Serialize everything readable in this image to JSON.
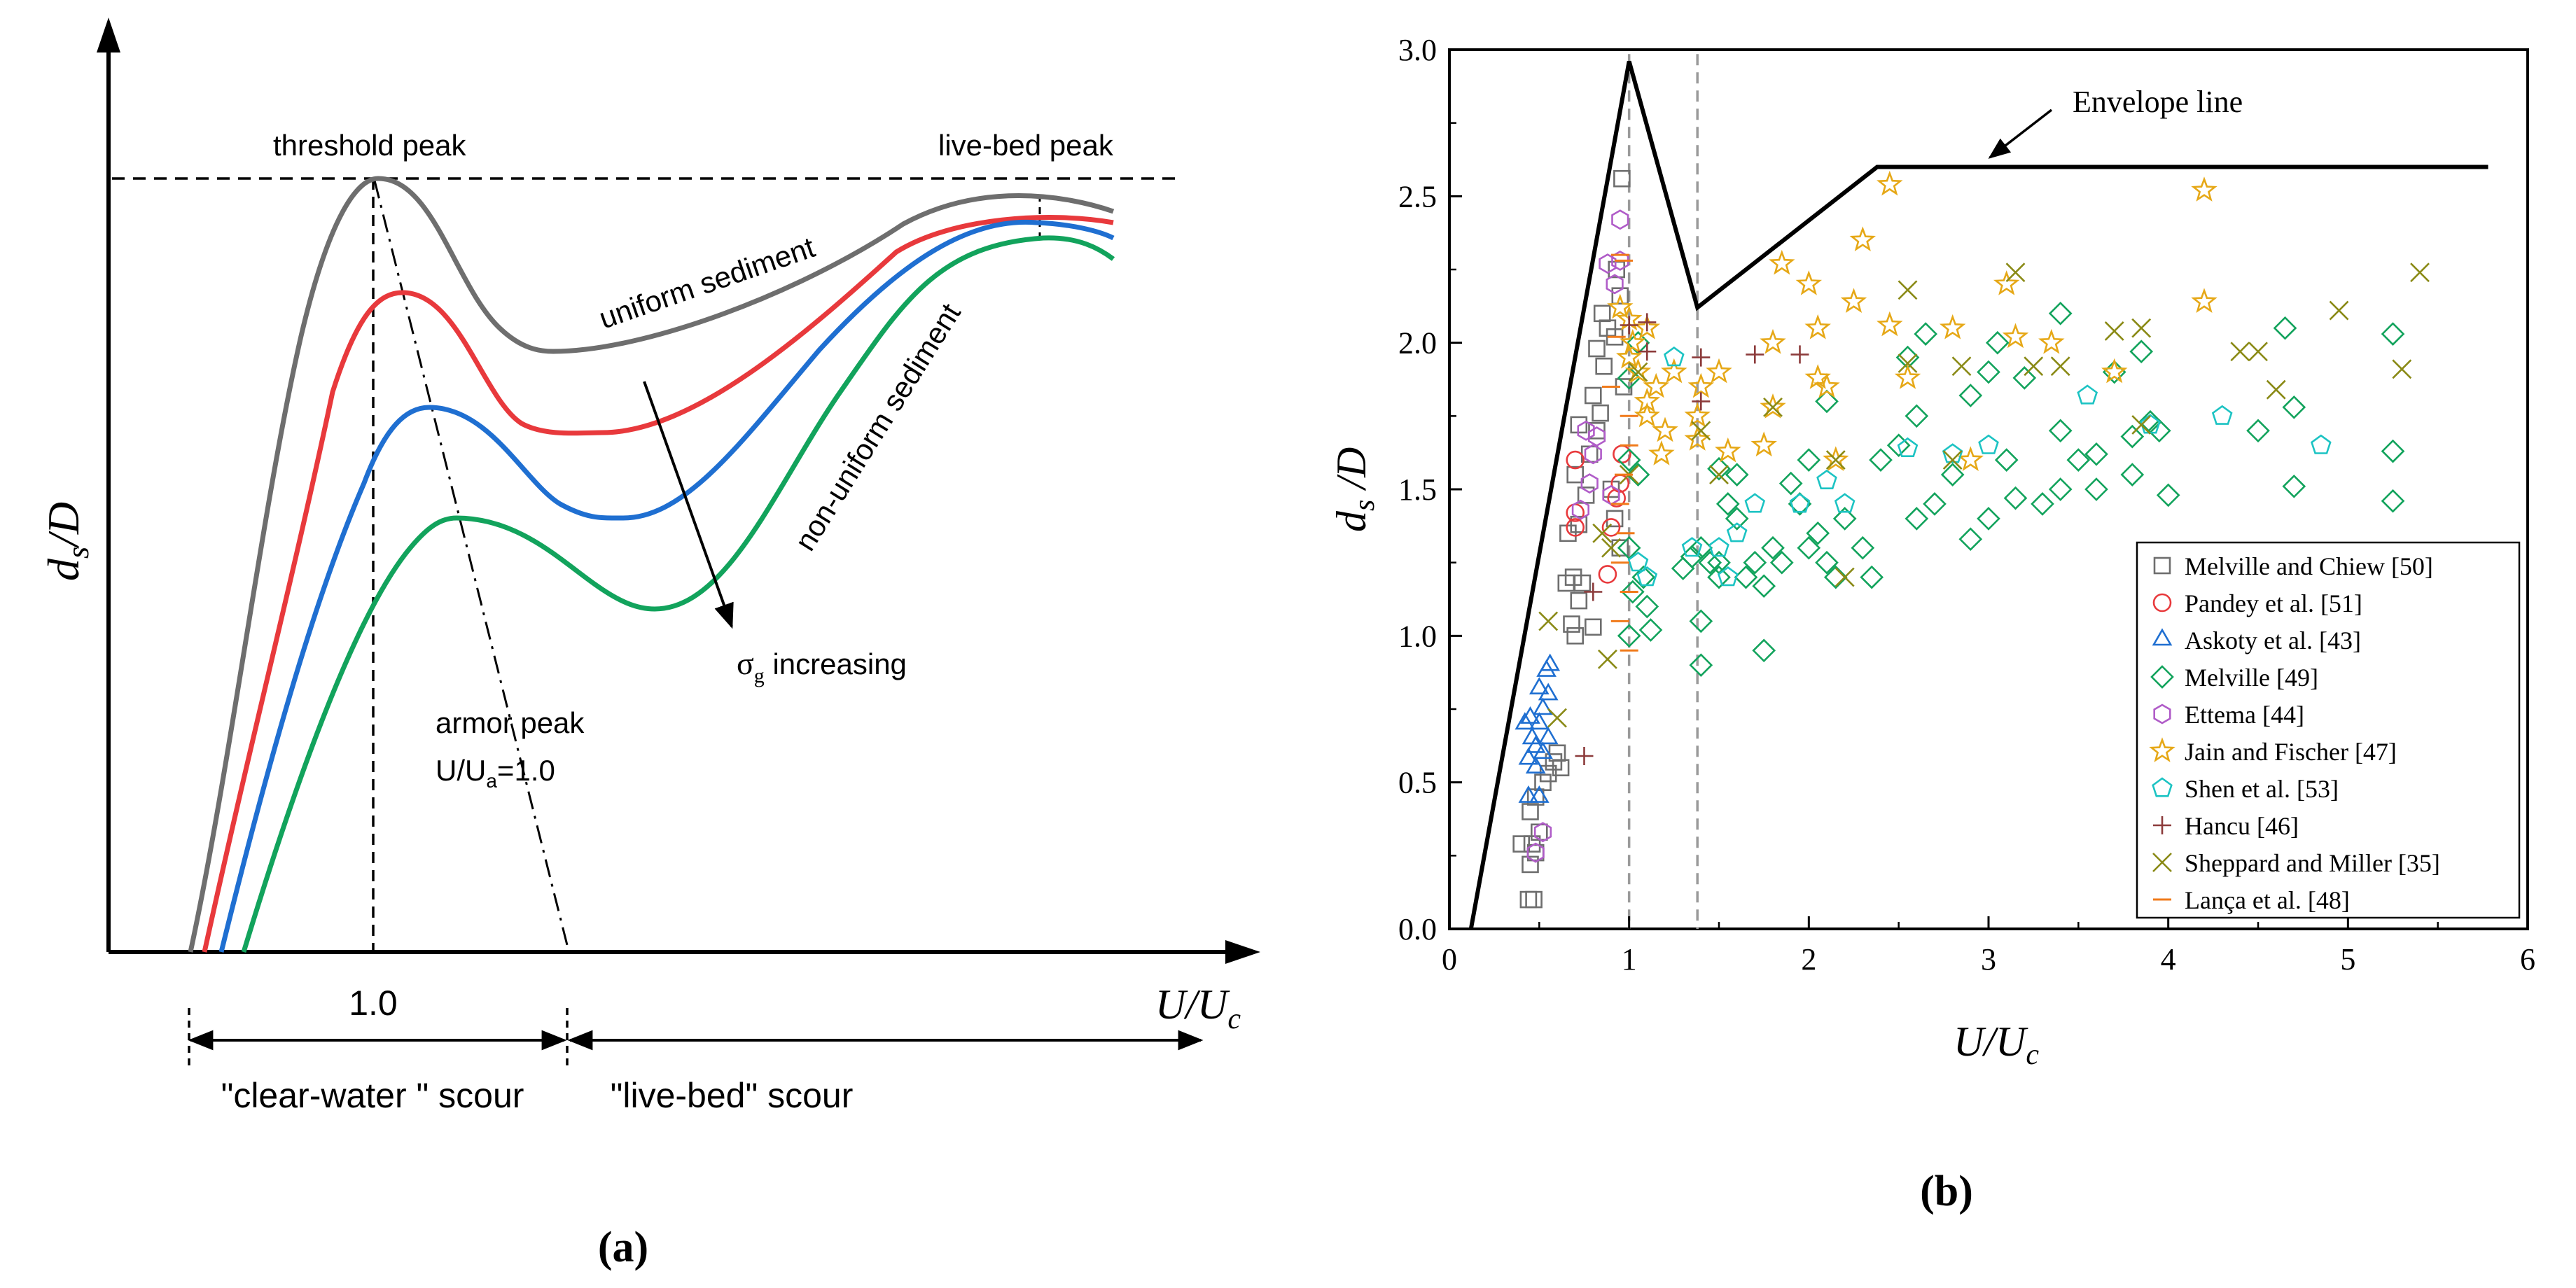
{
  "colors": {
    "uniform": "#6e6e6e",
    "red": "#e8393c",
    "blue": "#1f6fd1",
    "green": "#12a35c",
    "ref_dash": "#9a9a9a"
  },
  "panel_a": {
    "caption": "(a)",
    "x_axis_label": "U/U",
    "x_axis_label_sub": "c",
    "y_axis_label": "d",
    "y_axis_label_sub": "s",
    "y_axis_label_tail": "/D",
    "threshold_peak": "threshold peak",
    "live_bed_peak": "live-bed peak",
    "uniform_sediment": "uniform sediment",
    "non_uniform_sediment": "non-uniform sediment",
    "sigma_symbol": "σ",
    "sigma_sub": "g",
    "sigma_tail": " increasing",
    "armor_peak": "armor peak",
    "armor_ratio": "U/U",
    "armor_ratio_sub": "a",
    "armor_ratio_tail": "=1.0",
    "tick_one": "1.0",
    "clear_water": "\"clear-water \" scour",
    "live_bed": "\"live-bed\" scour"
  },
  "panel_b": {
    "caption": "(b)",
    "envelope_label": "Envelope line"
  },
  "chart_data": {
    "type": "scatter",
    "title": "",
    "xlabel": "U/U_c",
    "ylabel": "d_s /D",
    "x_ticks": [
      "0",
      "1",
      "2",
      "3",
      "4",
      "5",
      "6"
    ],
    "y_ticks": [
      "0.0",
      "0.5",
      "1.0",
      "1.5",
      "2.0",
      "2.5",
      "3.0"
    ],
    "xlim": [
      0,
      6
    ],
    "ylim": [
      0,
      3.0
    ],
    "legend_position": "bottom-right",
    "envelope": [
      [
        0.12,
        0.0
      ],
      [
        1.0,
        2.96
      ],
      [
        1.38,
        2.12
      ],
      [
        2.38,
        2.6
      ],
      [
        5.78,
        2.6
      ]
    ],
    "reference_lines_x": [
      1.0,
      1.38
    ],
    "series": [
      {
        "name": "Melville and Chiew [50]",
        "symbol": "square",
        "color": "#6e6e6e",
        "points": [
          [
            0.4,
            0.29
          ],
          [
            0.46,
            0.29
          ],
          [
            0.44,
            0.1
          ],
          [
            0.47,
            0.1
          ],
          [
            0.45,
            0.22
          ],
          [
            0.48,
            0.26
          ],
          [
            0.5,
            0.33
          ],
          [
            0.45,
            0.4
          ],
          [
            0.48,
            0.45
          ],
          [
            0.52,
            0.5
          ],
          [
            0.55,
            0.53
          ],
          [
            0.6,
            0.6
          ],
          [
            0.58,
            0.57
          ],
          [
            0.62,
            0.55
          ],
          [
            0.7,
            1.0
          ],
          [
            0.68,
            1.04
          ],
          [
            0.72,
            1.12
          ],
          [
            0.65,
            1.18
          ],
          [
            0.69,
            1.2
          ],
          [
            0.74,
            1.18
          ],
          [
            0.8,
            1.03
          ],
          [
            0.66,
            1.35
          ],
          [
            0.72,
            1.38
          ],
          [
            0.76,
            1.48
          ],
          [
            0.7,
            1.55
          ],
          [
            0.78,
            1.62
          ],
          [
            0.82,
            1.7
          ],
          [
            0.72,
            1.72
          ],
          [
            0.8,
            1.82
          ],
          [
            0.84,
            1.76
          ],
          [
            0.86,
            1.92
          ],
          [
            0.82,
            1.98
          ],
          [
            0.88,
            2.05
          ],
          [
            0.92,
            2.02
          ],
          [
            0.85,
            2.1
          ],
          [
            0.95,
            2.16
          ],
          [
            0.93,
            2.25
          ],
          [
            0.96,
            2.56
          ],
          [
            0.95,
            1.3
          ],
          [
            0.9,
            1.5
          ],
          [
            0.92,
            1.4
          ],
          [
            0.97,
            1.85
          ]
        ]
      },
      {
        "name": "Pandey et al. [51]",
        "symbol": "circle",
        "color": "#e8393c",
        "points": [
          [
            0.7,
            1.6
          ],
          [
            0.7,
            1.42
          ],
          [
            0.7,
            1.37
          ],
          [
            0.88,
            1.21
          ],
          [
            0.9,
            1.37
          ],
          [
            0.93,
            1.47
          ],
          [
            0.95,
            1.52
          ],
          [
            0.96,
            1.62
          ]
        ]
      },
      {
        "name": "Askoty et al. [43]",
        "symbol": "triangle",
        "color": "#1f6fd1",
        "points": [
          [
            0.44,
            0.45
          ],
          [
            0.5,
            0.45
          ],
          [
            0.48,
            0.55
          ],
          [
            0.44,
            0.58
          ],
          [
            0.52,
            0.6
          ],
          [
            0.46,
            0.65
          ],
          [
            0.55,
            0.65
          ],
          [
            0.5,
            0.7
          ],
          [
            0.45,
            0.72
          ],
          [
            0.52,
            0.75
          ],
          [
            0.55,
            0.8
          ],
          [
            0.5,
            0.82
          ],
          [
            0.54,
            0.88
          ],
          [
            0.56,
            0.9
          ],
          [
            0.42,
            0.7
          ],
          [
            0.48,
            0.62
          ]
        ]
      },
      {
        "name": "Melville [49]",
        "symbol": "diamond",
        "color": "#12a35c",
        "points": [
          [
            1.0,
            1.88
          ],
          [
            1.05,
            2.0
          ],
          [
            1.0,
            1.6
          ],
          [
            1.05,
            1.55
          ],
          [
            1.0,
            1.3
          ],
          [
            1.08,
            1.2
          ],
          [
            1.0,
            1.0
          ],
          [
            1.02,
            1.15
          ],
          [
            1.1,
            1.1
          ],
          [
            1.12,
            1.02
          ],
          [
            1.3,
            1.23
          ],
          [
            1.35,
            1.27
          ],
          [
            1.4,
            1.3
          ],
          [
            1.45,
            1.25
          ],
          [
            1.5,
            1.2
          ],
          [
            1.55,
            1.45
          ],
          [
            1.6,
            1.4
          ],
          [
            1.5,
            1.57
          ],
          [
            1.6,
            1.55
          ],
          [
            1.65,
            1.2
          ],
          [
            1.7,
            1.25
          ],
          [
            1.75,
            1.17
          ],
          [
            1.8,
            1.3
          ],
          [
            1.85,
            1.25
          ],
          [
            1.9,
            1.52
          ],
          [
            1.95,
            1.45
          ],
          [
            2.0,
            1.3
          ],
          [
            2.05,
            1.35
          ],
          [
            2.1,
            1.25
          ],
          [
            2.15,
            1.2
          ],
          [
            2.0,
            1.6
          ],
          [
            2.1,
            1.8
          ],
          [
            2.2,
            1.4
          ],
          [
            2.3,
            1.3
          ],
          [
            2.4,
            1.6
          ],
          [
            2.5,
            1.65
          ],
          [
            2.6,
            1.75
          ],
          [
            2.55,
            1.95
          ],
          [
            2.65,
            2.03
          ],
          [
            2.6,
            1.4
          ],
          [
            2.7,
            1.45
          ],
          [
            2.8,
            1.55
          ],
          [
            2.9,
            1.33
          ],
          [
            2.9,
            1.82
          ],
          [
            3.0,
            1.9
          ],
          [
            3.05,
            2.0
          ],
          [
            3.0,
            1.4
          ],
          [
            3.1,
            1.6
          ],
          [
            3.15,
            1.47
          ],
          [
            3.2,
            1.88
          ],
          [
            3.3,
            1.45
          ],
          [
            3.4,
            1.5
          ],
          [
            3.5,
            1.6
          ],
          [
            3.6,
            1.5
          ],
          [
            3.4,
            1.7
          ],
          [
            3.6,
            1.62
          ],
          [
            3.7,
            1.9
          ],
          [
            3.8,
            1.55
          ],
          [
            3.85,
            1.97
          ],
          [
            3.8,
            1.68
          ],
          [
            3.9,
            1.73
          ],
          [
            3.4,
            2.1
          ],
          [
            3.95,
            1.7
          ],
          [
            4.0,
            1.48
          ],
          [
            4.65,
            2.05
          ],
          [
            4.7,
            1.78
          ],
          [
            4.7,
            1.51
          ],
          [
            5.25,
            2.03
          ],
          [
            5.25,
            1.63
          ],
          [
            5.25,
            1.46
          ],
          [
            1.4,
            1.05
          ],
          [
            1.4,
            0.9
          ],
          [
            1.75,
            0.95
          ],
          [
            1.5,
            1.25
          ],
          [
            2.35,
            1.2
          ],
          [
            4.5,
            1.7
          ]
        ]
      },
      {
        "name": "Ettema [44]",
        "symbol": "hexagon",
        "color": "#b05cc8",
        "points": [
          [
            0.52,
            0.33
          ],
          [
            0.48,
            0.26
          ],
          [
            0.73,
            1.43
          ],
          [
            0.78,
            1.52
          ],
          [
            0.8,
            1.62
          ],
          [
            0.76,
            1.7
          ],
          [
            0.82,
            1.68
          ],
          [
            0.9,
            1.48
          ],
          [
            0.88,
            2.27
          ],
          [
            0.95,
            2.42
          ],
          [
            0.92,
            2.2
          ],
          [
            0.95,
            2.28
          ]
        ]
      },
      {
        "name": "Jain and Fischer [47]",
        "symbol": "star",
        "color": "#e6a817",
        "points": [
          [
            0.95,
            2.12
          ],
          [
            1.0,
            2.08
          ],
          [
            1.02,
            2.0
          ],
          [
            1.05,
            1.9
          ],
          [
            1.1,
            1.8
          ],
          [
            1.15,
            1.85
          ],
          [
            1.2,
            1.7
          ],
          [
            1.18,
            1.62
          ],
          [
            1.25,
            1.9
          ],
          [
            1.38,
            1.75
          ],
          [
            1.38,
            1.67
          ],
          [
            1.4,
            1.85
          ],
          [
            1.5,
            1.9
          ],
          [
            1.55,
            1.63
          ],
          [
            1.75,
            1.65
          ],
          [
            1.8,
            1.78
          ],
          [
            1.8,
            2.0
          ],
          [
            1.85,
            2.27
          ],
          [
            2.0,
            2.2
          ],
          [
            2.05,
            2.05
          ],
          [
            2.05,
            1.88
          ],
          [
            2.1,
            1.85
          ],
          [
            2.15,
            1.6
          ],
          [
            2.25,
            2.14
          ],
          [
            2.3,
            2.35
          ],
          [
            2.45,
            2.06
          ],
          [
            2.45,
            2.54
          ],
          [
            2.55,
            1.88
          ],
          [
            2.8,
            2.05
          ],
          [
            2.9,
            1.6
          ],
          [
            3.1,
            2.2
          ],
          [
            3.15,
            2.02
          ],
          [
            3.35,
            2.0
          ],
          [
            3.7,
            1.9
          ],
          [
            4.2,
            2.52
          ],
          [
            4.2,
            2.14
          ],
          [
            1.1,
            1.75
          ],
          [
            1.0,
            1.95
          ],
          [
            1.1,
            2.05
          ]
        ]
      },
      {
        "name": "Shen et al. [53]",
        "symbol": "pentagon",
        "color": "#1cc3c3",
        "points": [
          [
            1.05,
            1.25
          ],
          [
            1.1,
            1.2
          ],
          [
            1.35,
            1.3
          ],
          [
            1.5,
            1.3
          ],
          [
            1.55,
            1.2
          ],
          [
            1.6,
            1.35
          ],
          [
            1.7,
            1.45
          ],
          [
            1.95,
            1.45
          ],
          [
            2.1,
            1.53
          ],
          [
            2.2,
            1.45
          ],
          [
            2.55,
            1.64
          ],
          [
            2.8,
            1.62
          ],
          [
            3.0,
            1.65
          ],
          [
            3.55,
            1.82
          ],
          [
            3.9,
            1.72
          ],
          [
            4.3,
            1.75
          ],
          [
            4.85,
            1.65
          ],
          [
            1.25,
            1.95
          ]
        ]
      },
      {
        "name": "Hancu [46]",
        "symbol": "plus",
        "color": "#8c3b3b",
        "points": [
          [
            0.75,
            0.59
          ],
          [
            0.8,
            1.15
          ],
          [
            1.0,
            2.06
          ],
          [
            1.1,
            2.07
          ],
          [
            1.1,
            1.97
          ],
          [
            1.4,
            1.95
          ],
          [
            1.4,
            1.8
          ],
          [
            1.7,
            1.96
          ],
          [
            1.95,
            1.96
          ]
        ]
      },
      {
        "name": "Sheppard and Miller [35]",
        "symbol": "x",
        "color": "#8a8a16",
        "points": [
          [
            0.6,
            0.72
          ],
          [
            0.55,
            1.05
          ],
          [
            0.85,
            1.35
          ],
          [
            0.9,
            1.3
          ],
          [
            0.88,
            0.92
          ],
          [
            1.0,
            1.55
          ],
          [
            1.05,
            1.9
          ],
          [
            1.4,
            1.7
          ],
          [
            1.5,
            1.55
          ],
          [
            1.8,
            1.78
          ],
          [
            2.15,
            1.6
          ],
          [
            2.2,
            1.2
          ],
          [
            2.55,
            1.93
          ],
          [
            2.55,
            2.18
          ],
          [
            2.8,
            1.6
          ],
          [
            2.85,
            1.92
          ],
          [
            3.15,
            2.24
          ],
          [
            3.25,
            1.92
          ],
          [
            3.4,
            1.92
          ],
          [
            3.7,
            2.04
          ],
          [
            3.85,
            2.05
          ],
          [
            3.85,
            1.72
          ],
          [
            4.4,
            1.97
          ],
          [
            4.5,
            1.97
          ],
          [
            4.6,
            1.84
          ],
          [
            4.95,
            2.11
          ],
          [
            5.3,
            1.91
          ],
          [
            5.4,
            2.24
          ]
        ]
      },
      {
        "name": "Lança et al. [48]",
        "symbol": "dash",
        "color": "#f07a1a",
        "points": [
          [
            0.93,
            2.02
          ],
          [
            0.95,
            1.45
          ],
          [
            0.98,
            1.35
          ],
          [
            0.97,
            1.55
          ],
          [
            1.0,
            1.65
          ],
          [
            1.0,
            1.15
          ],
          [
            1.0,
            0.95
          ],
          [
            0.95,
            1.05
          ],
          [
            0.95,
            1.25
          ],
          [
            0.95,
            2.3
          ],
          [
            0.97,
            2.28
          ],
          [
            1.0,
            1.75
          ],
          [
            0.9,
            1.85
          ]
        ]
      }
    ]
  }
}
